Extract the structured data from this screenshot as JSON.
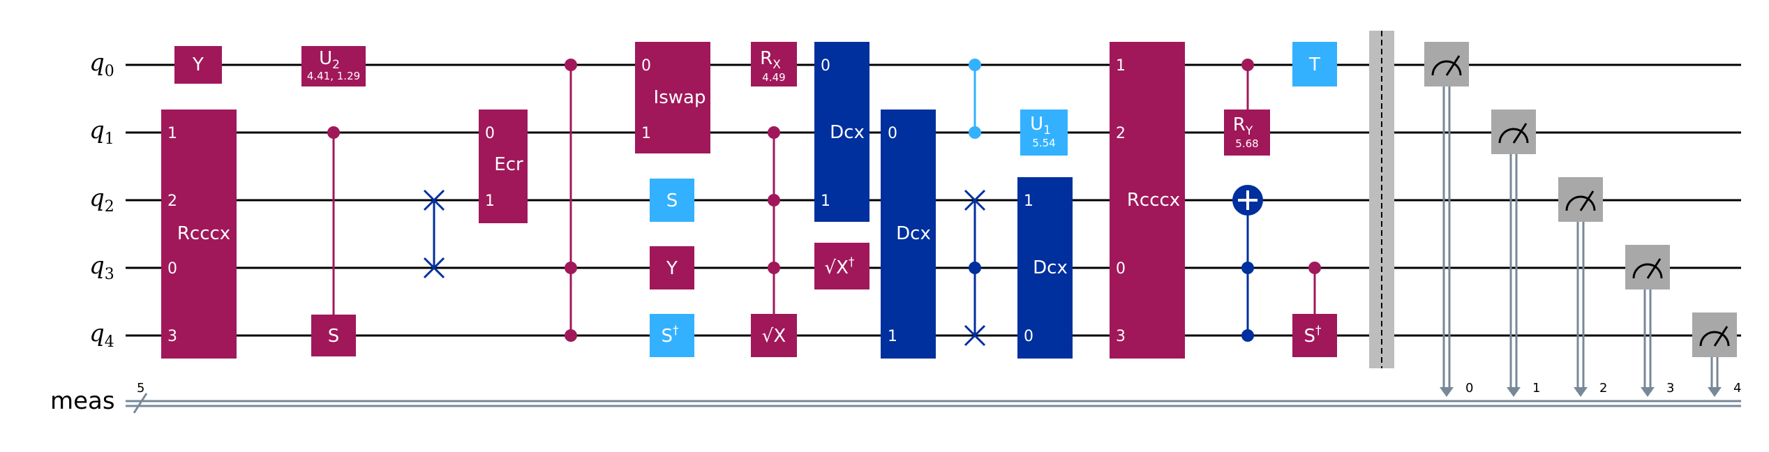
{
  "qubits": [
    {
      "base": "q",
      "sub": "0"
    },
    {
      "base": "q",
      "sub": "1"
    },
    {
      "base": "q",
      "sub": "2"
    },
    {
      "base": "q",
      "sub": "3"
    },
    {
      "base": "q",
      "sub": "4"
    }
  ],
  "classical_register": {
    "name": "meas",
    "width": "5",
    "bits": [
      "0",
      "1",
      "2",
      "3",
      "4"
    ]
  },
  "colors": {
    "magenta": "#A0185A",
    "navy": "#002F9E",
    "cyan": "#33B1FF",
    "gray": "#A8A8A8",
    "barrier": "#BDBDBD",
    "wire": "#000000",
    "classical": "#778899",
    "white": "#FFFFFF"
  },
  "gates": {
    "y_q0": {
      "label": "Y"
    },
    "rcccx_1": {
      "label": "Rcccx",
      "pins": [
        "1",
        "2",
        "0",
        "3"
      ]
    },
    "u2": {
      "base": "U",
      "sub": "2",
      "params": "4.41, 1.29"
    },
    "cs_target": {
      "label": "S"
    },
    "ecr": {
      "label": "Ecr",
      "pins": [
        "0",
        "1"
      ]
    },
    "iswap": {
      "label": "Iswap",
      "pins": [
        "0",
        "1"
      ]
    },
    "s_q2": {
      "label": "S"
    },
    "y_q3": {
      "label": "Y"
    },
    "sdg_q4": {
      "label": "S",
      "sup": "†"
    },
    "rx": {
      "base": "R",
      "sub": "X",
      "params": "4.49"
    },
    "sx_q4": {
      "label": "√X"
    },
    "dcx_1": {
      "label": "Dcx",
      "pins": [
        "0",
        "1"
      ]
    },
    "sxdg_q3": {
      "label": "√X",
      "sup": "†"
    },
    "dcx_2": {
      "label": "Dcx",
      "pins": [
        "0",
        "1"
      ]
    },
    "u1": {
      "base": "U",
      "sub": "1",
      "params": "5.54"
    },
    "dcx_3": {
      "label": "Dcx",
      "pins": [
        "1",
        "0"
      ]
    },
    "rcccx_2": {
      "label": "Rcccx",
      "pins": [
        "1",
        "2",
        "0",
        "3"
      ]
    },
    "ry": {
      "base": "R",
      "sub": "Y",
      "params": "5.68"
    },
    "t_q0": {
      "label": "T"
    },
    "csdg_target": {
      "label": "S",
      "sup": "†"
    }
  }
}
